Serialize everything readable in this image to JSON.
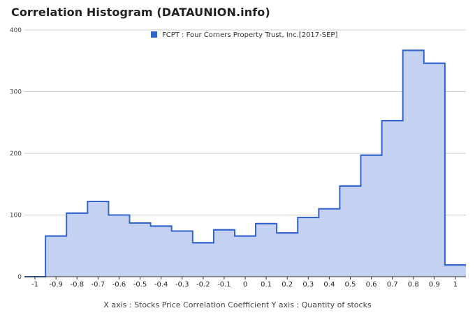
{
  "chart_data": {
    "type": "area",
    "title": "Correlation Histogram (DATAUNION.info)",
    "xlabel": "X axis : Stocks Price Correlation Coefficient  Y axis : Quantity of stocks",
    "ylabel": "",
    "ylim": [
      0,
      400
    ],
    "xlim": [
      -1.05,
      1.05
    ],
    "yticks": [
      "0",
      "100",
      "200",
      "300",
      "400"
    ],
    "xticks": [
      "-1",
      "-0.9",
      "-0.8",
      "-0.7",
      "-0.6",
      "-0.5",
      "-0.4",
      "-0.3",
      "-0.2",
      "-0.1",
      "0",
      "0.1",
      "0.2",
      "0.3",
      "0.4",
      "0.5",
      "0.6",
      "0.7",
      "0.8",
      "0.9",
      "1"
    ],
    "grid": true,
    "legend_position": "top-center",
    "step": "center",
    "series": [
      {
        "name": "FCPT : Four Corners Property Trust, Inc.[2017-SEP]",
        "color": "#3366cc",
        "fill": "#c5d1f0",
        "x": [
          -1,
          -0.9,
          -0.8,
          -0.7,
          -0.6,
          -0.5,
          -0.4,
          -0.3,
          -0.2,
          -0.1,
          0,
          0.1,
          0.2,
          0.3,
          0.4,
          0.5,
          0.6,
          0.7,
          0.8,
          0.9,
          1
        ],
        "values": [
          0,
          66,
          103,
          122,
          100,
          87,
          82,
          74,
          55,
          76,
          66,
          86,
          71,
          96,
          110,
          147,
          197,
          253,
          367,
          346,
          19
        ]
      }
    ]
  }
}
